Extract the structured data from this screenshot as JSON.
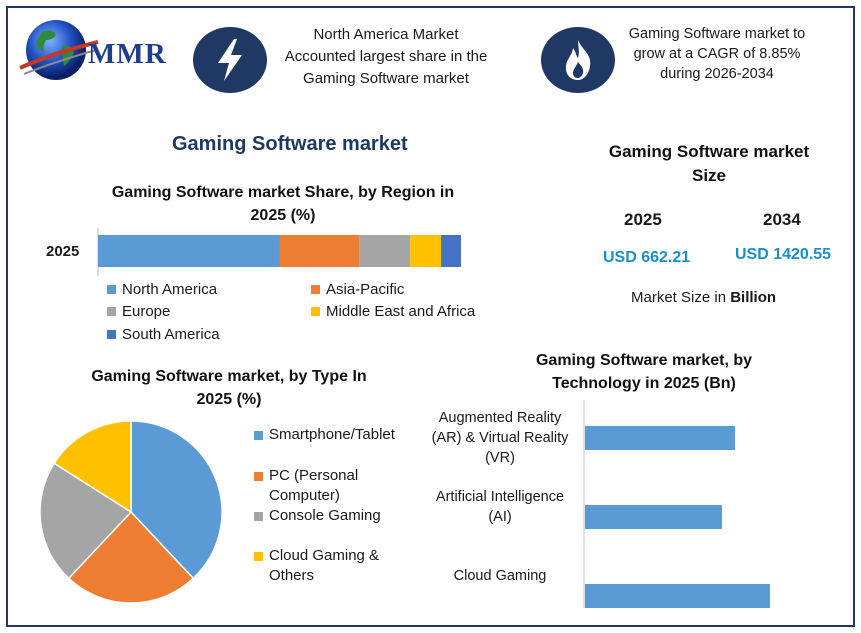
{
  "header": {
    "logo_text": "MMR",
    "box1_icon": "lightning-icon",
    "box1_lines": [
      "North America Market",
      "Accounted largest share in the",
      "Gaming Software market"
    ],
    "box2_icon": "flame-icon",
    "box2_lines": [
      "Gaming Software market to",
      "grow at a CAGR of 8.85%",
      "during 2026-2034"
    ]
  },
  "main_title": "Gaming Software market",
  "market_size": {
    "title_lines": [
      "Gaming Software market",
      "Size"
    ],
    "years": [
      "2025",
      "2034"
    ],
    "values": [
      "USD 662.21",
      "USD 1420.55"
    ],
    "note_prefix": "Market Size in ",
    "note_bold": "Billion"
  },
  "colors": {
    "navy": "#1f3864",
    "blue": "#5b9bd5",
    "orange": "#ed7d31",
    "gray": "#a5a5a5",
    "yellow": "#ffc000",
    "darkblue": "#4472c4",
    "value_blue": "#1b8ec8"
  },
  "chart_data": [
    {
      "type": "bar",
      "orientation": "horizontal-stacked",
      "title": "Gaming Software market Share, by Region in 2025 (%)",
      "title_lines": [
        "Gaming Software market Share, by Region in",
        "2025 (%)"
      ],
      "categories": [
        "2025"
      ],
      "series": [
        {
          "name": "North America",
          "values": [
            50
          ],
          "color": "#5b9bd5"
        },
        {
          "name": "Asia-Pacific",
          "values": [
            22
          ],
          "color": "#ed7d31"
        },
        {
          "name": "Europe",
          "values": [
            14
          ],
          "color": "#a5a5a5"
        },
        {
          "name": "Middle East and Africa",
          "values": [
            8.5
          ],
          "color": "#ffc000"
        },
        {
          "name": "South America",
          "values": [
            5.5
          ],
          "color": "#4472c4"
        }
      ],
      "legend_placement": "bottom",
      "grid": false
    },
    {
      "type": "pie",
      "title": "Gaming Software market, by Type In 2025 (%)",
      "title_lines": [
        "Gaming Software market, by Type In",
        "2025 (%)"
      ],
      "slices": [
        {
          "name": "Smartphone/Tablet",
          "value": 38,
          "color": "#5b9bd5"
        },
        {
          "name": "PC (Personal Computer)",
          "value": 24,
          "color": "#ed7d31"
        },
        {
          "name": "Console Gaming",
          "value": 22,
          "color": "#a5a5a5"
        },
        {
          "name": "Cloud Gaming & Others",
          "value": 16,
          "color": "#ffc000"
        }
      ],
      "legend_lines": [
        [
          "Smartphone/Tablet"
        ],
        [
          "PC (Personal",
          "Computer)"
        ],
        [
          "Console Gaming"
        ],
        [
          "Cloud Gaming &",
          "Others"
        ]
      ],
      "legend_placement": "right"
    },
    {
      "type": "bar",
      "orientation": "horizontal",
      "title": "Gaming Software market, by Technology in 2025 (Bn)",
      "title_lines": [
        "Gaming Software market, by",
        "Technology in 2025 (Bn)"
      ],
      "categories": [
        "Augmented Reality (AR) & Virtual Reality (VR)",
        "Artificial Intelligence (AI)",
        "Cloud Gaming"
      ],
      "category_lines": [
        [
          "Augmented Reality",
          "(AR) & Virtual Reality",
          "(VR)"
        ],
        [
          "Artificial Intelligence",
          "(AI)"
        ],
        [
          "Cloud Gaming"
        ]
      ],
      "values": [
        150,
        137,
        185
      ],
      "xlim": [
        0,
        250
      ],
      "color": "#5b9bd5",
      "grid": false
    }
  ]
}
